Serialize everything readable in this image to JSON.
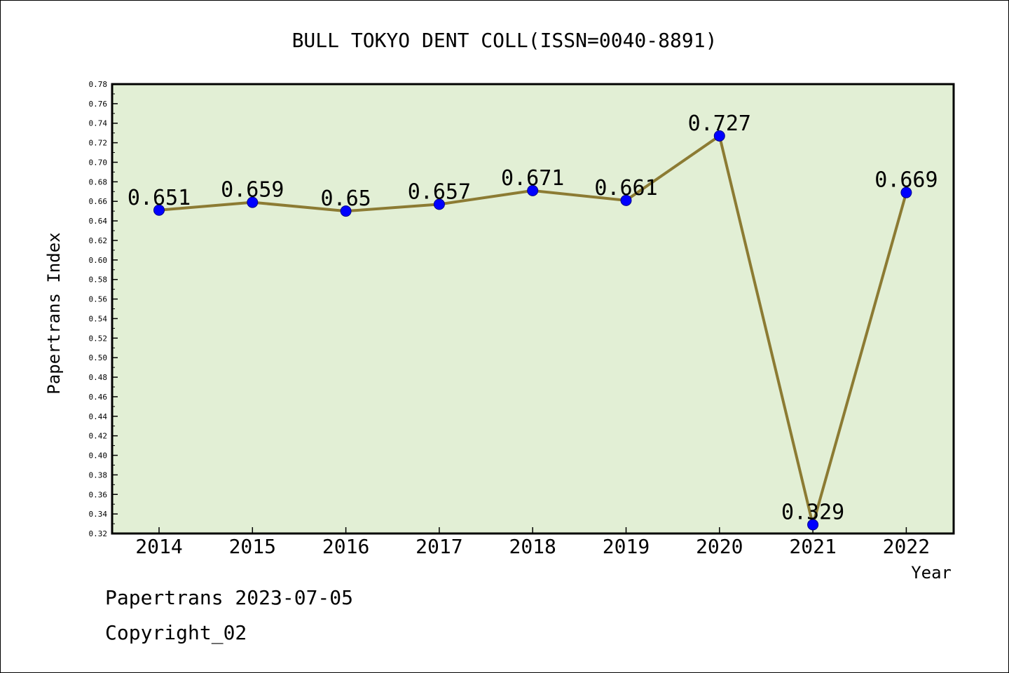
{
  "chart_data": {
    "type": "line",
    "title": "BULL TOKYO DENT COLL(ISSN=0040-8891)",
    "xlabel": "Year",
    "ylabel": "Papertrans Index",
    "categories": [
      "2014",
      "2015",
      "2016",
      "2017",
      "2018",
      "2019",
      "2020",
      "2021",
      "2022"
    ],
    "series": [
      {
        "values": [
          0.651,
          0.659,
          0.65,
          0.657,
          0.671,
          0.661,
          0.727,
          0.329,
          0.669
        ]
      }
    ],
    "data_labels": [
      "0.651",
      "0.659",
      "0.65",
      "0.657",
      "0.671",
      "0.661",
      "0.727",
      "0.329",
      "0.669"
    ],
    "ylim": [
      0.32,
      0.78
    ],
    "ytick_step": 0.02,
    "grid": false,
    "colors": {
      "plot_background": "#e2efd5",
      "line": "#8c7b33",
      "marker": "#0000ff"
    }
  },
  "footer": {
    "line1": "Papertrans 2023-07-05",
    "line2": "Copyright_02"
  }
}
